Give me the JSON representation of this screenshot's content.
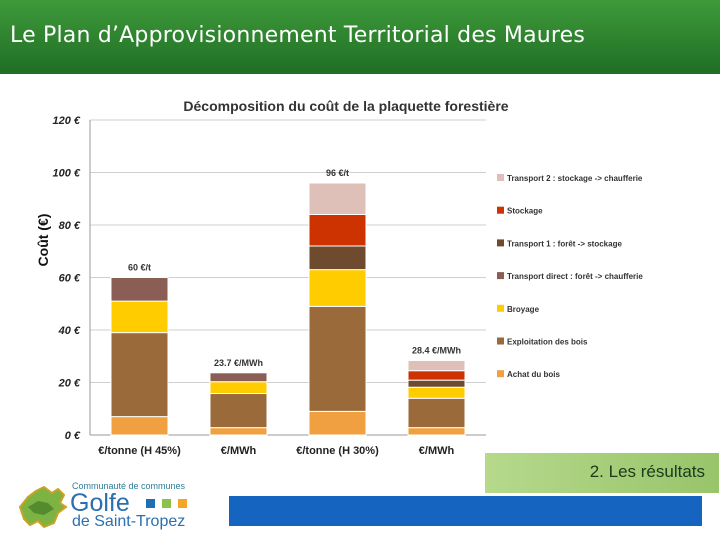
{
  "header": {
    "title": "Le Plan d’Approvisionnement Territorial des Maures"
  },
  "section": {
    "label": "2. Les résultats"
  },
  "logo": {
    "line1": "Communauté de communes",
    "line2": "Golfe",
    "line3": "de Saint-Tropez",
    "square_colors": [
      "#1f6fb5",
      "#8bc34a",
      "#f5a623"
    ]
  },
  "chart_data": {
    "type": "bar",
    "stacked": true,
    "title": "Décomposition du coût de la plaquette forestière",
    "xlabel": "",
    "ylabel": "Coût (€)",
    "ylim": [
      0,
      120
    ],
    "yticks": [
      0,
      20,
      40,
      60,
      80,
      100,
      120
    ],
    "ytick_labels": [
      "0 €",
      "20 €",
      "40 €",
      "60 €",
      "80 €",
      "100 €",
      "120 €"
    ],
    "grid": true,
    "legend_position": "right",
    "categories": [
      "€/tonne (H 45%)",
      "€/MWh",
      "€/tonne (H 30%)",
      "€/MWh"
    ],
    "totals_labels": [
      "60 €/t",
      "23.7 €/MWh",
      "96 €/t",
      "28.4 €/MWh"
    ],
    "series": [
      {
        "name": "Achat du bois",
        "color": "#f0a040",
        "values": [
          7,
          2.8,
          9,
          2.8
        ]
      },
      {
        "name": "Exploitation des bois",
        "color": "#9a6a3a",
        "values": [
          32,
          13,
          40,
          11.2
        ]
      },
      {
        "name": "Broyage",
        "color": "#ffcc00",
        "values": [
          12,
          4.5,
          14,
          4.2
        ]
      },
      {
        "name": "Transport direct : forêt -> chaufferie",
        "color": "#8b5e55",
        "values": [
          9,
          3.4,
          0,
          0
        ]
      },
      {
        "name": "Transport 1 : forêt -> stockage",
        "color": "#6e4a2e",
        "values": [
          0,
          0,
          9,
          2.7
        ]
      },
      {
        "name": "Stockage",
        "color": "#cc3300",
        "values": [
          0,
          0,
          12,
          3.6
        ]
      },
      {
        "name": "Transport 2 : stockage -> chaufferie",
        "color": "#dfc0b8",
        "values": [
          0,
          0,
          12,
          3.9
        ]
      }
    ]
  }
}
